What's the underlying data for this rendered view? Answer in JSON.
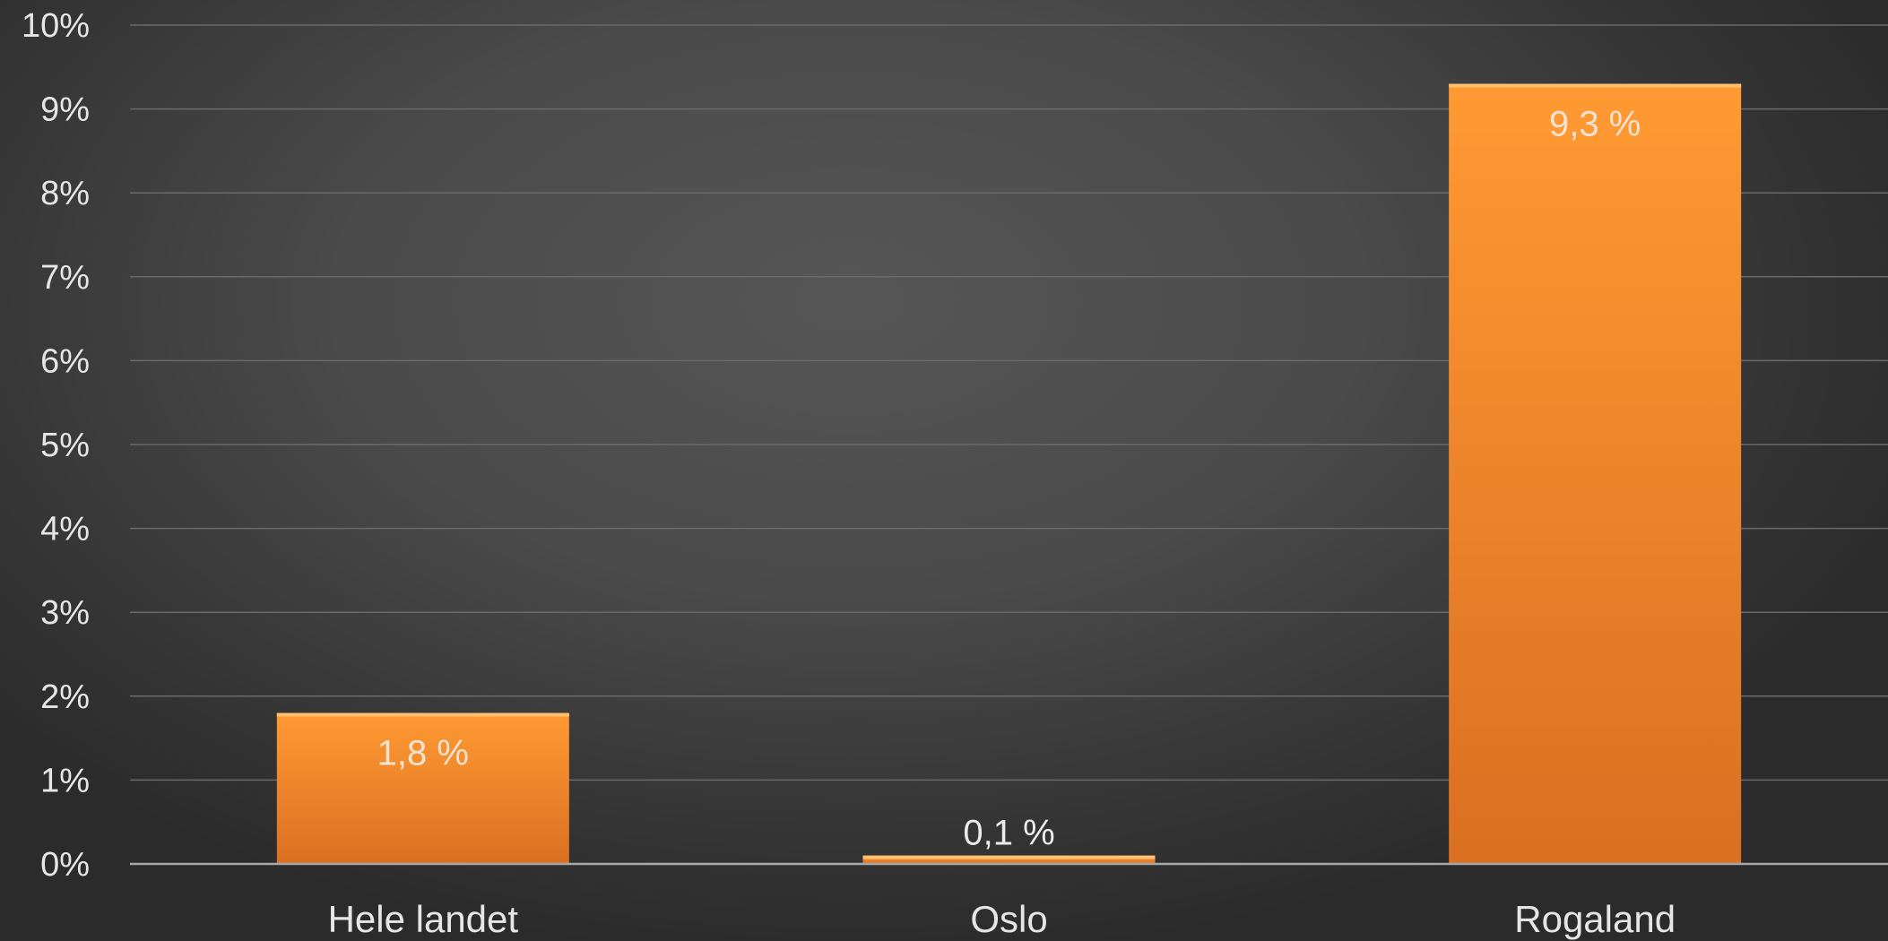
{
  "chart_data": {
    "type": "bar",
    "title": "",
    "xlabel": "",
    "ylabel": "",
    "categories": [
      "Hele landet",
      "Oslo",
      "Rogaland"
    ],
    "values": [
      1.8,
      0.1,
      9.3
    ],
    "data_labels": [
      "1,8 %",
      "0,1 %",
      "9,3 %"
    ],
    "ylim": [
      0,
      10
    ],
    "yticks": [
      0,
      1,
      2,
      3,
      4,
      5,
      6,
      7,
      8,
      9,
      10
    ],
    "ytick_labels": [
      "0%",
      "1%",
      "2%",
      "3%",
      "4%",
      "5%",
      "6%",
      "7%",
      "8%",
      "9%",
      "10%"
    ],
    "grid": true,
    "legend": "none",
    "colors": {
      "bar_top": "#ff9a33",
      "bar_bottom": "#d97022",
      "bar_edge": "#ffc070",
      "label_inside": "#f3e3d0",
      "label_outside": "#ececec"
    }
  }
}
